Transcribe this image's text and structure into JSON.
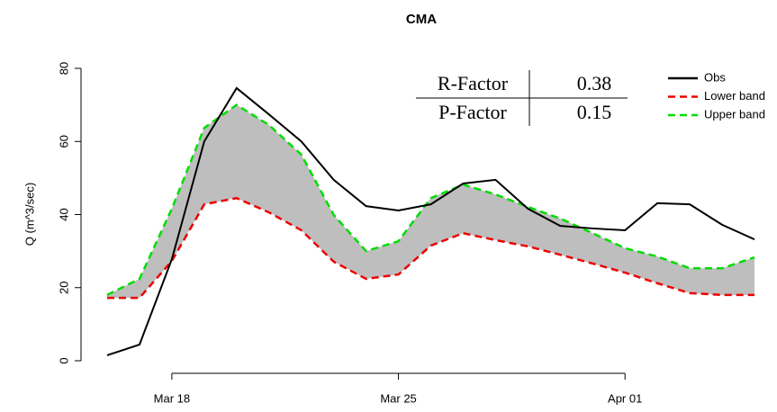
{
  "chart_data": {
    "type": "line",
    "title": "CMA",
    "y_label": "Q (m^3/sec)",
    "x": [
      "Mar 16",
      "Mar 17",
      "Mar 18",
      "Mar 19",
      "Mar 20",
      "Mar 21",
      "Mar 22",
      "Mar 23",
      "Mar 24",
      "Mar 25",
      "Mar 26",
      "Mar 27",
      "Mar 28",
      "Mar 29",
      "Mar 30",
      "Mar 31",
      "Apr 01",
      "Apr 02",
      "Apr 03",
      "Apr 04",
      "Apr 05"
    ],
    "xticks": [
      "Mar 18",
      "Mar 25",
      "Apr 01"
    ],
    "ylim": [
      0,
      80
    ],
    "yticks": [
      0,
      20,
      40,
      60,
      80
    ],
    "band_color": "#bebebe",
    "legend": "topright",
    "series": [
      {
        "name": "Obs",
        "color": "#000000",
        "dashed": false,
        "values": [
          1.5,
          4.4,
          27.8,
          60,
          74.6,
          67.4,
          60,
          49.5,
          42.3,
          41.1,
          42.8,
          48.5,
          49.5,
          41.6,
          36.9,
          36.2,
          35.7,
          43.1,
          42.8,
          37.2,
          33.2
        ]
      },
      {
        "name": "Lower band",
        "color": "#ee0000",
        "dashed": true,
        "values": [
          17.2,
          17.2,
          27.3,
          42.8,
          44.5,
          40.6,
          35.7,
          27.1,
          22.4,
          23.6,
          31.5,
          34.9,
          33,
          31.3,
          29,
          26.6,
          24.1,
          21.2,
          18.5,
          18,
          18
        ]
      },
      {
        "name": "Upper band",
        "color": "#00dd00",
        "dashed": true,
        "values": [
          18,
          22.4,
          41.6,
          63.7,
          70,
          64.5,
          56.4,
          39.9,
          30,
          32.7,
          44.5,
          48.2,
          45.5,
          42.1,
          38.9,
          34.9,
          30.8,
          28.5,
          25.3,
          25.3,
          28.3
        ]
      }
    ],
    "stats_table": {
      "rows": [
        [
          "R-Factor",
          "0.38"
        ],
        [
          "P-Factor",
          "0.15"
        ]
      ]
    }
  }
}
